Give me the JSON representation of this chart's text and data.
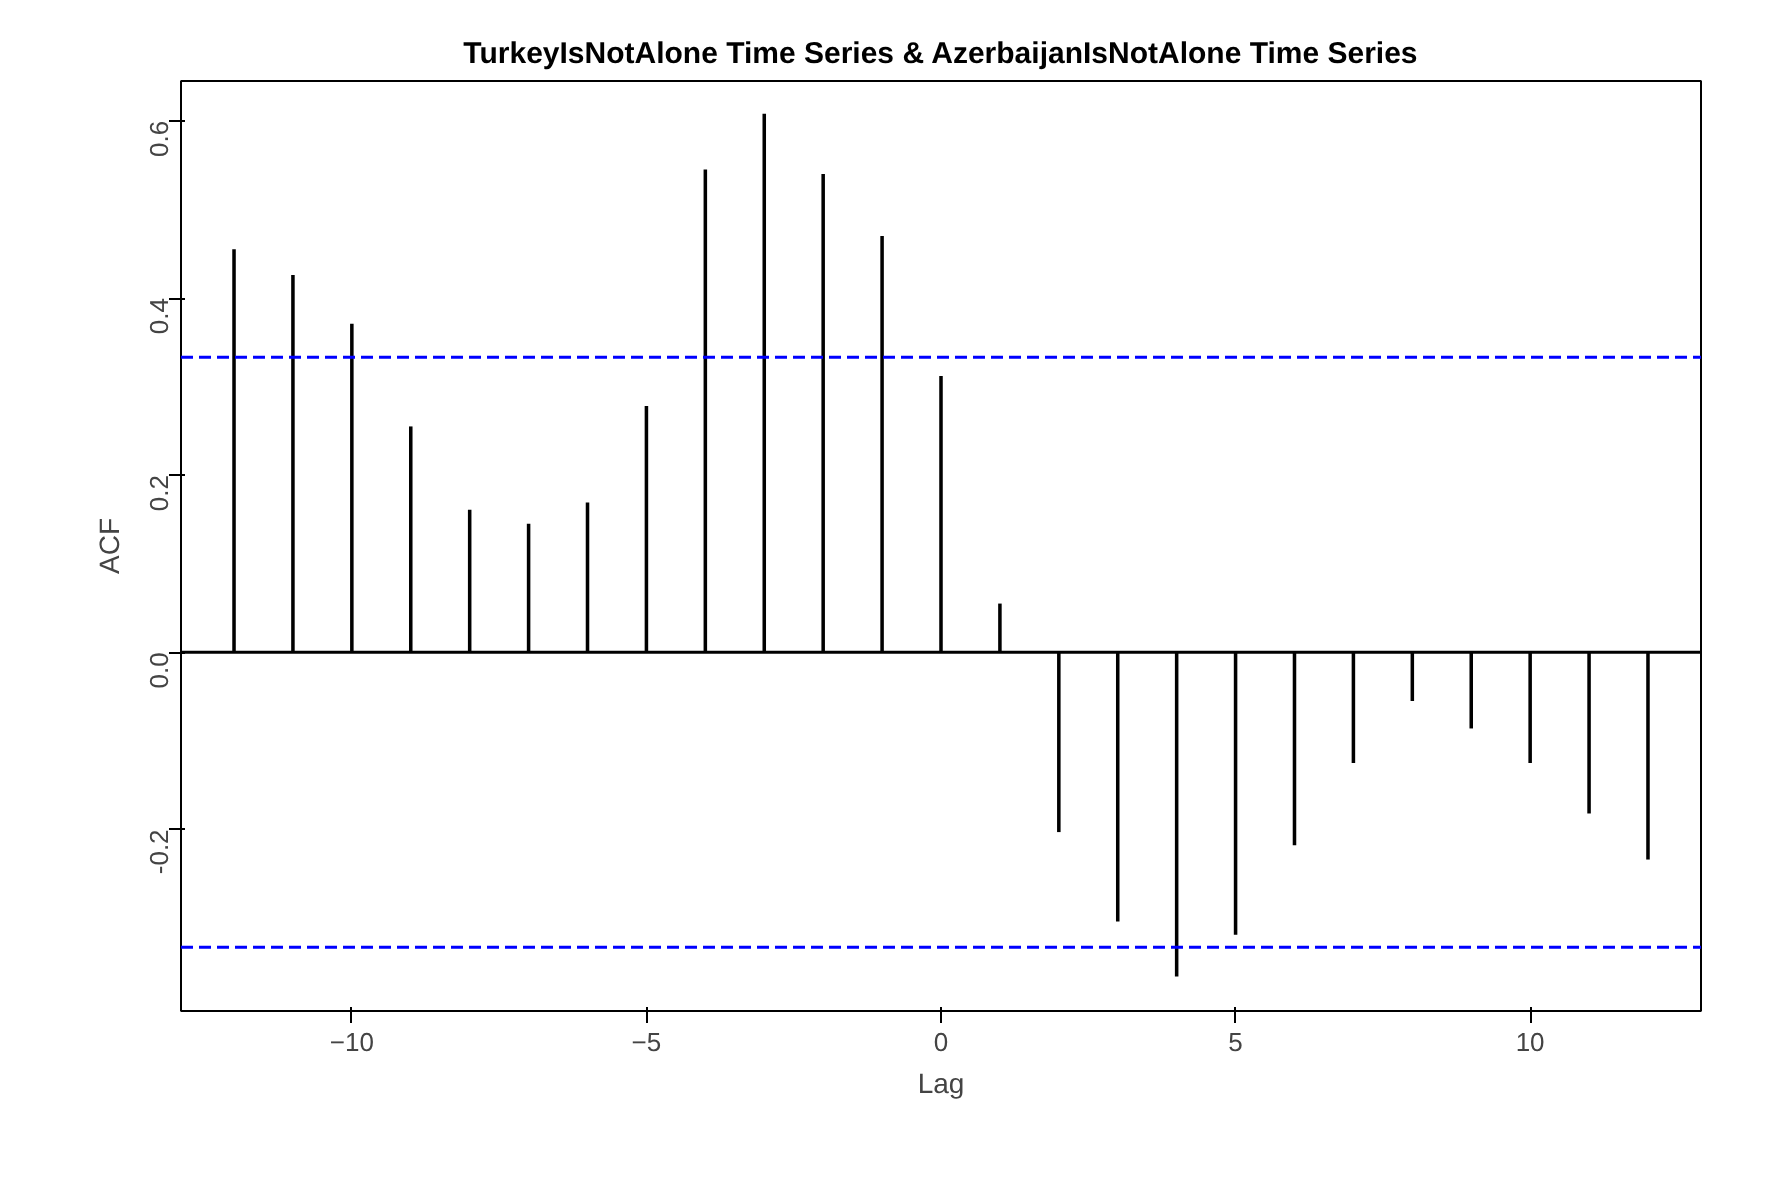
{
  "chart_data": {
    "type": "bar",
    "title": "TurkeyIsNotAlone Time Series & AzerbaijanIsNotAlone Time Series",
    "xlabel": "Lag",
    "ylabel": "ACF",
    "x": [
      -12,
      -11,
      -10,
      -9,
      -8,
      -7,
      -6,
      -5,
      -4,
      -3,
      -2,
      -1,
      0,
      1,
      2,
      3,
      4,
      5,
      6,
      7,
      8,
      9,
      10,
      11,
      12
    ],
    "series": [
      {
        "color": "#000000",
        "values": [
          0.455,
          0.426,
          0.371,
          0.255,
          0.161,
          0.145,
          0.169,
          0.278,
          0.545,
          0.608,
          0.54,
          0.47,
          0.312,
          0.055,
          -0.203,
          -0.304,
          -0.366,
          -0.319,
          -0.218,
          -0.125,
          -0.055,
          -0.086,
          -0.125,
          -0.182,
          -0.234
        ]
      }
    ],
    "xlim": [
      -12.9,
      12.9
    ],
    "ylim": [
      -0.405,
      0.645
    ],
    "xticks": [
      -10,
      -5,
      0,
      5,
      10
    ],
    "yticks": [
      {
        "value": -0.2,
        "label": "-0.2"
      },
      {
        "value": 0,
        "label": "0.0"
      },
      {
        "value": 0.2,
        "label": "0.2"
      },
      {
        "value": 0.4,
        "label": "0.4"
      },
      {
        "value": 0.6,
        "label": "0.6"
      }
    ],
    "ref_lines": [
      {
        "axis": "y",
        "value": 0,
        "color": "#000000",
        "line_style": "solid"
      },
      {
        "axis": "y",
        "value": 0.333,
        "color": "#0000ff",
        "line_style": "dashed"
      },
      {
        "axis": "y",
        "value": -0.333,
        "color": "#0000ff",
        "line_style": "dashed"
      }
    ],
    "grid": false
  }
}
